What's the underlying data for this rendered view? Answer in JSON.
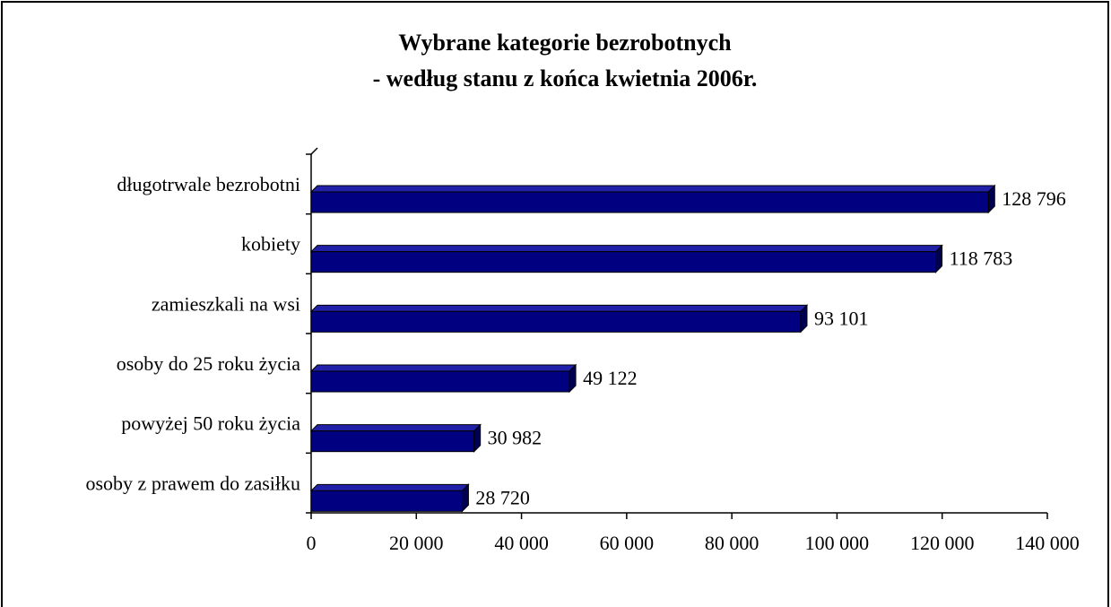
{
  "chart_data": {
    "type": "bar3d_horizontal",
    "title": [
      "Wybrane kategorie bezrobotnych",
      "- według stanu z końca kwietnia 2006r."
    ],
    "categories": [
      "długotrwale bezrobotni",
      "kobiety",
      "zamieszkali na wsi",
      "osoby do 25 roku życia",
      "powyżej 50 roku życia",
      "osoby z prawem do zasiłku"
    ],
    "values": [
      128796,
      118783,
      93101,
      49122,
      30982,
      28720
    ],
    "value_labels": [
      "128 796",
      "118 783",
      "93 101",
      "49 122",
      "30 982",
      "28 720"
    ],
    "color": "#000080",
    "xlim": [
      0,
      140000
    ],
    "xticks": [
      0,
      {
        "value": 20000,
        "label": "20 000"
      },
      {
        "value": 40000,
        "label": "40 000"
      },
      {
        "value": 60000,
        "label": "60 000"
      },
      {
        "value": 80000,
        "label": "80 000"
      },
      {
        "value": 100000,
        "label": "100 000"
      },
      {
        "value": 120000,
        "label": "120 000"
      },
      {
        "value": 140000,
        "label": "140 000"
      }
    ]
  }
}
